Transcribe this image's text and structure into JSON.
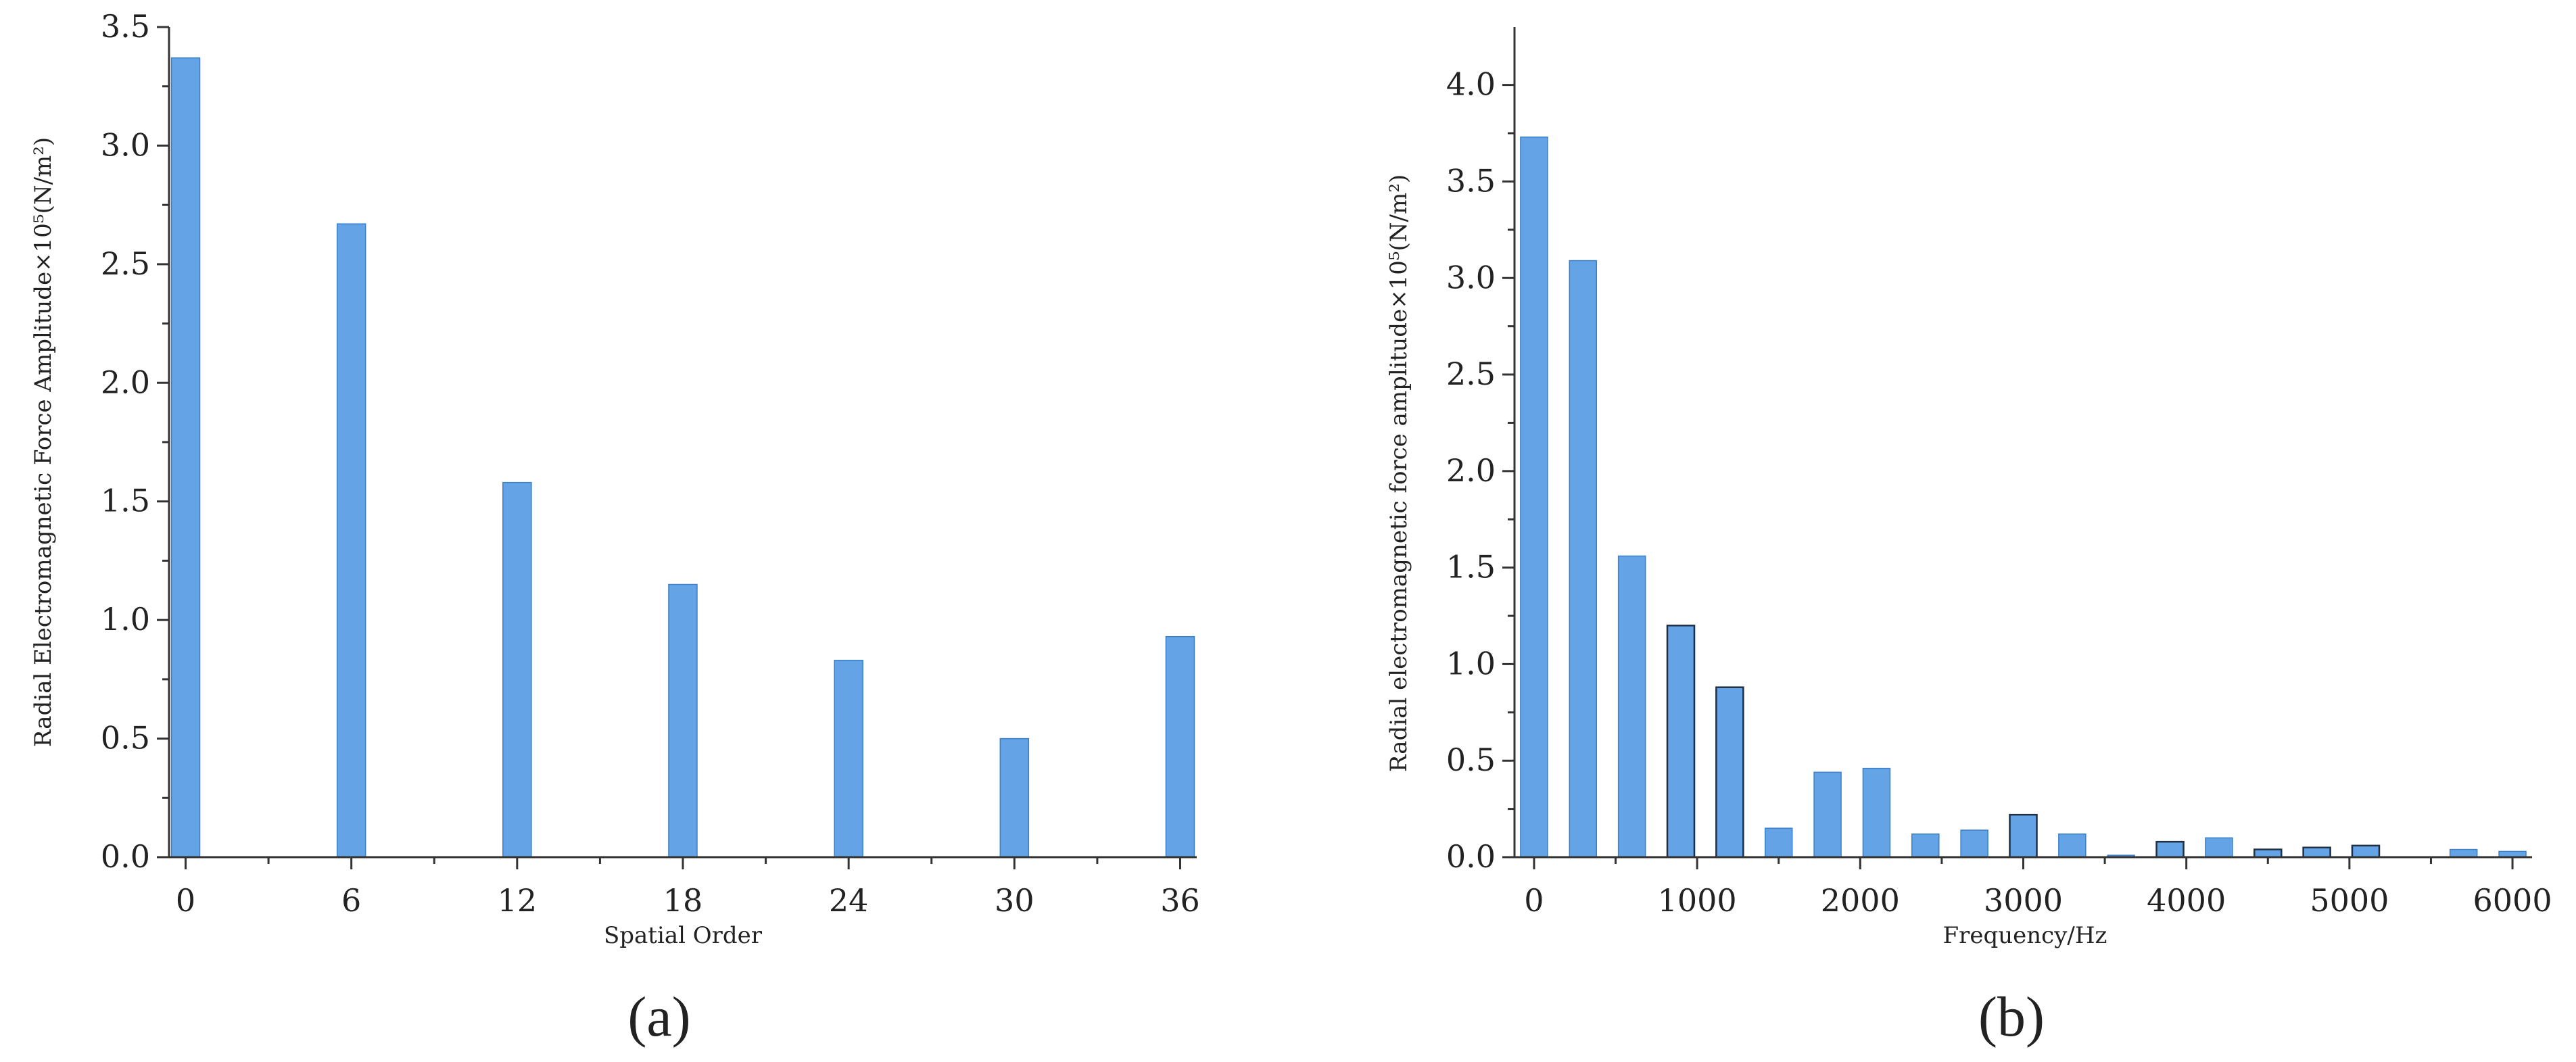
{
  "chart_data": [
    {
      "type": "bar",
      "panel_label": "(a)",
      "xlabel": "Spatial Order",
      "ylabel": "Radial Electromagnetic Force Amplitude×10⁵(N/m²)",
      "x": [
        0,
        6,
        12,
        18,
        24,
        30,
        36
      ],
      "values": [
        3.37,
        2.67,
        1.58,
        1.15,
        0.83,
        0.5,
        0.93
      ],
      "xlim": [
        -0.6,
        36.6
      ],
      "ylim": [
        0,
        3.5
      ],
      "xticks": [
        0,
        6,
        12,
        18,
        24,
        30,
        36
      ],
      "yticks": [
        "0.0",
        "0.5",
        "1.0",
        "1.5",
        "2.0",
        "2.5",
        "3.0",
        "3.5"
      ],
      "color": "#63a3e6",
      "grid": false
    },
    {
      "type": "bar",
      "panel_label": "(b)",
      "xlabel": "Frequency/Hz",
      "ylabel": "Radial electromagnetic force amplitude×10⁵(N/m²)",
      "x": [
        0,
        300,
        600,
        900,
        1200,
        1500,
        1800,
        2100,
        2400,
        2700,
        3000,
        3300,
        3600,
        3900,
        4200,
        4500,
        4800,
        5100,
        5700,
        6000
      ],
      "values": [
        3.73,
        3.09,
        1.56,
        1.2,
        0.88,
        0.15,
        0.44,
        0.46,
        0.12,
        0.14,
        0.22,
        0.12,
        0.01,
        0.08,
        0.1,
        0.04,
        0.05,
        0.06,
        0.04,
        0.03
      ],
      "xlim": [
        -120,
        6120
      ],
      "ylim": [
        0,
        4.3
      ],
      "xticks": [
        0,
        1000,
        2000,
        3000,
        4000,
        5000,
        6000
      ],
      "yticks": [
        "0.0",
        "0.5",
        "1.0",
        "1.5",
        "2.0",
        "2.5",
        "3.0",
        "3.5",
        "4.0"
      ],
      "color": "#63a3e6",
      "grid": false
    }
  ]
}
